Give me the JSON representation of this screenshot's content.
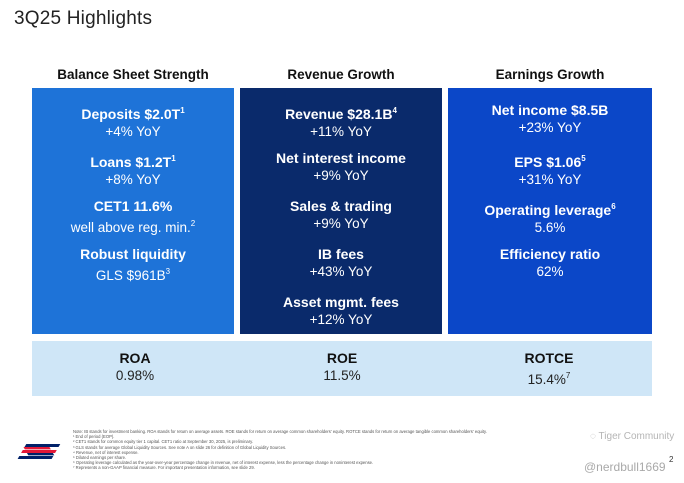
{
  "slide": {
    "title": "3Q25 Highlights",
    "page_number": "2"
  },
  "columns": [
    {
      "header": "Balance Sheet Strength",
      "items": [
        {
          "line1": "Deposits $2.0T",
          "sup1": "1",
          "line2": "+4% YoY",
          "sup2": ""
        },
        {
          "line1": "Loans $1.2T",
          "sup1": "1",
          "line2": "+8% YoY",
          "sup2": ""
        },
        {
          "line1": "CET1 11.6%",
          "sup1": "",
          "line2": "well above reg. min.",
          "sup2": "2"
        },
        {
          "line1": "Robust liquidity",
          "sup1": "",
          "line2": "GLS $961B",
          "sup2": "3"
        }
      ]
    },
    {
      "header": "Revenue Growth",
      "items": [
        {
          "line1": "Revenue $28.1B",
          "sup1": "4",
          "line2": "+11% YoY",
          "sup2": ""
        },
        {
          "line1": "Net interest income",
          "sup1": "",
          "line2": "+9% YoY",
          "sup2": ""
        },
        {
          "line1": "Sales & trading",
          "sup1": "",
          "line2": "+9% YoY",
          "sup2": ""
        },
        {
          "line1": "IB fees",
          "sup1": "",
          "line2": "+43% YoY",
          "sup2": ""
        },
        {
          "line1": "Asset mgmt. fees",
          "sup1": "",
          "line2": "+12% YoY",
          "sup2": ""
        }
      ]
    },
    {
      "header": "Earnings Growth",
      "items": [
        {
          "line1": "Net income $8.5B",
          "sup1": "",
          "line2": "+23% YoY",
          "sup2": ""
        },
        {
          "line1": "EPS $1.06",
          "sup1": "5",
          "line2": "+31% YoY",
          "sup2": ""
        },
        {
          "line1": "Operating leverage",
          "sup1": "6",
          "line2": "5.6%",
          "sup2": ""
        },
        {
          "line1": "Efficiency ratio",
          "sup1": "",
          "line2": "62%",
          "sup2": ""
        }
      ]
    }
  ],
  "metrics": [
    {
      "name": "ROA",
      "value": "0.98%",
      "sup": ""
    },
    {
      "name": "ROE",
      "value": "11.5%",
      "sup": ""
    },
    {
      "name": "ROTCE",
      "value": "15.4%",
      "sup": "7"
    }
  ],
  "footnotes": [
    "Note: IB stands for investment banking. ROA stands for return on average assets. ROE stands for return on average common shareholders' equity. ROTCE stands for return on average tangible common shareholders' equity.",
    "¹ End of period (EOP).",
    "² CET1 stands for common equity tier 1 capital. CET1 ratio at September 30, 2025, is preliminary.",
    "³ GLS stands for average Global Liquidity Sources. See note A on slide 26 for definition of Global Liquidity Sources.",
    "⁴ Revenue, net of interest expense.",
    "⁵ Diluted earnings per share.",
    "⁶ Operating leverage calculated as the year-over-year percentage change in revenue, net of interest expense, less the percentage change in noninterest expense.",
    "⁷ Represents a non-GAAP financial measure. For important presentation information, see slide 29."
  ],
  "watermark": {
    "community": "Tiger Community",
    "handle": "@nerdbull1669"
  },
  "colors": {
    "panel1": "#1e73d8",
    "panel2": "#0a2a6b",
    "panel3": "#0b47c8",
    "band": "#cfe6f7",
    "logo_red": "#e31837",
    "logo_blue": "#012169"
  }
}
